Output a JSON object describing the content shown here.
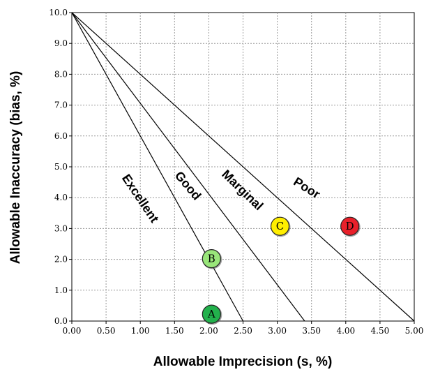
{
  "chart_data": {
    "type": "scatter",
    "title": "",
    "xlabel": "Allowable Imprecision (s, %)",
    "ylabel": "Allowable Inaccuracy (bias, %)",
    "xlim": [
      0,
      5
    ],
    "ylim": [
      0,
      10
    ],
    "x_ticks": [
      0,
      0.5,
      1,
      1.5,
      2,
      2.5,
      3,
      3.5,
      4,
      4.5,
      5
    ],
    "x_tick_labels": [
      "0.00",
      "0.50",
      "1.00",
      "1.50",
      "2.00",
      "2.50",
      "3.00",
      "3.50",
      "4.00",
      "4.50",
      "5.00"
    ],
    "y_ticks": [
      0,
      1,
      2,
      3,
      4,
      5,
      6,
      7,
      8,
      9,
      10
    ],
    "y_tick_labels": [
      "0.0",
      "1.0",
      "2.0",
      "3.0",
      "4.0",
      "5.0",
      "6.0",
      "7.0",
      "8.0",
      "9.0",
      "10.0"
    ],
    "grid": true,
    "lines": [
      {
        "x": [
          0,
          2.5
        ],
        "y": [
          10,
          0
        ]
      },
      {
        "x": [
          0,
          3.4
        ],
        "y": [
          10,
          0
        ]
      },
      {
        "x": [
          0,
          5.0
        ],
        "y": [
          10,
          0
        ]
      }
    ],
    "regions": [
      {
        "label": "Excellent",
        "x": 0.95,
        "y": 3.9,
        "angle": 56
      },
      {
        "label": "Good",
        "x": 1.65,
        "y": 4.3,
        "angle": 50
      },
      {
        "label": "Marginal",
        "x": 2.45,
        "y": 4.15,
        "angle": 44
      },
      {
        "label": "Poor",
        "x": 3.4,
        "y": 4.2,
        "angle": 32
      }
    ],
    "points": [
      {
        "label": "A",
        "x": 2.05,
        "y": 0.2,
        "color": "#22b14c"
      },
      {
        "label": "B",
        "x": 2.05,
        "y": 2.0,
        "color": "#99e67a"
      },
      {
        "label": "C",
        "x": 3.05,
        "y": 3.05,
        "color": "#ffee00"
      },
      {
        "label": "D",
        "x": 4.07,
        "y": 3.05,
        "color": "#e8202a"
      }
    ]
  }
}
